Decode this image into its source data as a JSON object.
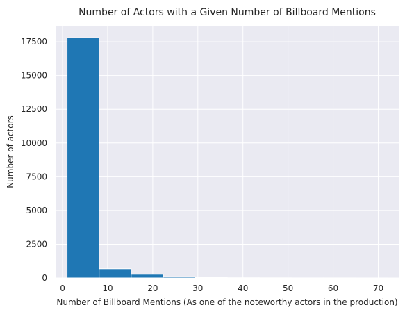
{
  "chart_data": {
    "type": "bar",
    "title": "Number of Actors with a Given Number of Billboard Mentions",
    "xlabel": "Number of Billboard Mentions (As one of the noteworthy actors in the production)",
    "ylabel": "Number of actors",
    "bins": [
      {
        "start": 1.0,
        "end": 8.1,
        "count": 17800
      },
      {
        "start": 8.1,
        "end": 15.2,
        "count": 680
      },
      {
        "start": 15.2,
        "end": 22.3,
        "count": 270
      },
      {
        "start": 22.3,
        "end": 29.4,
        "count": 90
      },
      {
        "start": 29.4,
        "end": 36.5,
        "count": 40
      },
      {
        "start": 36.5,
        "end": 43.6,
        "count": 15
      },
      {
        "start": 43.6,
        "end": 50.7,
        "count": 8
      },
      {
        "start": 50.7,
        "end": 57.8,
        "count": 5
      },
      {
        "start": 57.8,
        "end": 64.9,
        "count": 3
      },
      {
        "start": 64.9,
        "end": 72.0,
        "count": 2
      }
    ],
    "xlim": [
      -1.55,
      74.55
    ],
    "ylim": [
      0,
      18690
    ],
    "xticks": [
      0,
      10,
      20,
      30,
      40,
      50,
      60,
      70
    ],
    "xtick_labels": [
      "0",
      "10",
      "20",
      "30",
      "40",
      "50",
      "60",
      "70"
    ],
    "yticks": [
      0,
      2500,
      5000,
      7500,
      10000,
      12500,
      15000,
      17500
    ],
    "ytick_labels": [
      "0",
      "2500",
      "5000",
      "7500",
      "10000",
      "12500",
      "15000",
      "17500"
    ],
    "grid": true,
    "bar_color": "#1f77b4",
    "background_color": "#eaeaf2",
    "grid_color": "#ffffff"
  }
}
